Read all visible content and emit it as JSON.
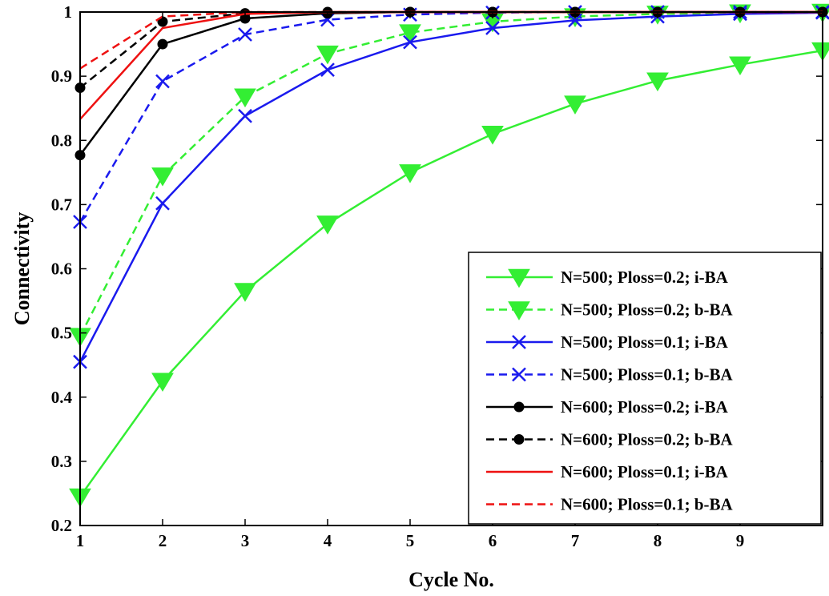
{
  "chart_data": {
    "type": "line",
    "xlabel": "Cycle No.",
    "ylabel": "Connectivity",
    "xlim": [
      1,
      10
    ],
    "ylim": [
      0.2,
      1
    ],
    "x_ticks": [
      "1",
      "2",
      "3",
      "4",
      "5",
      "6",
      "7",
      "8",
      "9"
    ],
    "y_ticks": [
      "0.2",
      "0.3",
      "0.4",
      "0.5",
      "0.6",
      "0.7",
      "0.8",
      "0.9",
      "1"
    ],
    "grid": false,
    "legend_position": "bottom-right",
    "x": [
      1,
      2,
      3,
      4,
      5,
      6,
      7,
      8,
      9,
      10
    ],
    "series": [
      {
        "name": "N=500; Ploss=0.2; i-BA",
        "color": "#33ee33",
        "dash": "solid",
        "marker": "triangle-down",
        "values": [
          0.245,
          0.425,
          0.565,
          0.67,
          0.75,
          0.81,
          0.857,
          0.893,
          0.918,
          0.94
        ]
      },
      {
        "name": "N=500; Ploss=0.2; b-BA",
        "color": "#33ee33",
        "dash": "dashed",
        "marker": "triangle-down",
        "values": [
          0.495,
          0.745,
          0.868,
          0.935,
          0.968,
          0.985,
          0.993,
          0.997,
          0.999,
          1.0
        ]
      },
      {
        "name": "N=500; Ploss=0.1; i-BA",
        "color": "#1a1aee",
        "dash": "solid",
        "marker": "x",
        "values": [
          0.455,
          0.702,
          0.838,
          0.91,
          0.953,
          0.975,
          0.987,
          0.993,
          0.997,
          0.999
        ]
      },
      {
        "name": "N=500; Ploss=0.1; b-BA",
        "color": "#1a1aee",
        "dash": "dashed",
        "marker": "x",
        "values": [
          0.673,
          0.892,
          0.965,
          0.988,
          0.996,
          0.999,
          1.0,
          1.0,
          1.0,
          1.0
        ]
      },
      {
        "name": "N=600; Ploss=0.2; i-BA",
        "color": "#000000",
        "dash": "solid",
        "marker": "dot",
        "values": [
          0.777,
          0.95,
          0.99,
          0.998,
          1.0,
          1.0,
          1.0,
          1.0,
          1.0,
          1.0
        ]
      },
      {
        "name": "N=600; Ploss=0.2; b-BA",
        "color": "#000000",
        "dash": "dashed",
        "marker": "dot",
        "values": [
          0.882,
          0.985,
          0.998,
          1.0,
          1.0,
          1.0,
          1.0,
          1.0,
          1.0,
          1.0
        ]
      },
      {
        "name": "N=600; Ploss=0.1; i-BA",
        "color": "#ee1111",
        "dash": "solid",
        "marker": "none",
        "values": [
          0.833,
          0.975,
          0.997,
          1.0,
          1.0,
          1.0,
          1.0,
          1.0,
          1.0,
          1.0
        ]
      },
      {
        "name": "N=600; Ploss=0.1; b-BA",
        "color": "#ee1111",
        "dash": "dashed",
        "marker": "none",
        "values": [
          0.912,
          0.993,
          1.0,
          1.0,
          1.0,
          1.0,
          1.0,
          1.0,
          1.0,
          1.0
        ]
      }
    ]
  }
}
